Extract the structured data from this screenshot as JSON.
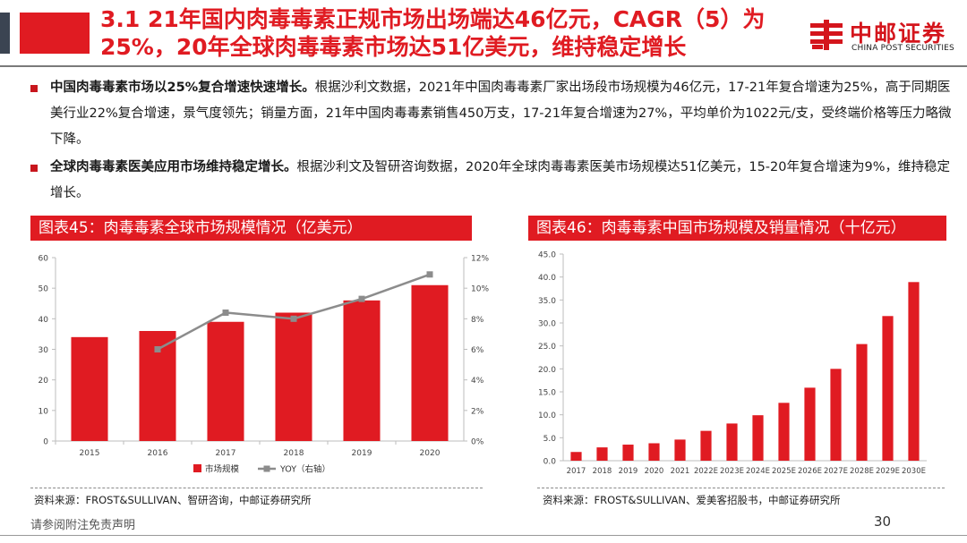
{
  "slide": {
    "title_line1": "3.1 21年国内肉毒毒素正规市场出场端达46亿元，CAGR（5）为",
    "title_line2": "25%，20年全球肉毒毒素市场达51亿美元，维持稳定增长",
    "logo_cn": "中邮证券",
    "logo_en": "CHINA POST SECURITIES",
    "footer_note": "请参阅附注免责声明",
    "page_number": "30"
  },
  "bullets": [
    {
      "lead": "中国肉毒毒素市场以25%复合增速快速增长。",
      "text": "根据沙利文数据，2021年中国肉毒毒素厂家出场段市场规模为46亿元，17-21年复合增速为25%，高于同期医美行业22%复合增速，景气度领先；销量方面，21年中国肉毒毒素销售450万支，17-21年复合增速为27%，平均单价为1022元/支，受终端价格等压力略微下降。"
    },
    {
      "lead": "全球肉毒毒素医美应用市场维持稳定增长。",
      "text": "根据沙利文及智研咨询数据，2020年全球肉毒毒素医美市场规模达51亿美元，15-20年复合增速为9%，维持稳定增长。"
    }
  ],
  "colors": {
    "accent_red": "#e01b22",
    "line_gray": "#8c8c8c",
    "dark_bar": "#3b4452"
  },
  "chart_data": [
    {
      "type": "bar",
      "title": "图表45：肉毒毒素全球市场规模情况（亿美元）",
      "categories": [
        "2015",
        "2016",
        "2017",
        "2018",
        "2019",
        "2020"
      ],
      "series": [
        {
          "name": "市场规模",
          "values": [
            34,
            36,
            39,
            42,
            46,
            51
          ],
          "axis": "left",
          "color": "#e01b22"
        },
        {
          "name": "YOY（右轴）",
          "type": "line",
          "values": [
            null,
            6.0,
            8.4,
            8.0,
            9.3,
            10.9
          ],
          "axis": "right",
          "color": "#8c8c8c"
        }
      ],
      "ylim": [
        0,
        60
      ],
      "y_ticks": [
        "0",
        "10",
        "20",
        "30",
        "40",
        "50",
        "60"
      ],
      "y2lim": [
        0,
        12
      ],
      "y2_ticks": [
        "0%",
        "2%",
        "4%",
        "6%",
        "8%",
        "10%",
        "12%"
      ],
      "legend_position": "bottom",
      "source": "资料来源：FROST&SULLIVAN、智研咨询，中邮证券研究所"
    },
    {
      "type": "bar",
      "title": "图表46：肉毒毒素中国市场规模及销量情况（十亿元）",
      "categories": [
        "2017",
        "2018",
        "2019",
        "2020",
        "2021",
        "2022E",
        "2023E",
        "2024E",
        "2025E",
        "2026E",
        "2027E",
        "2028E",
        "2029E",
        "2030E"
      ],
      "values": [
        1.9,
        2.9,
        3.5,
        3.8,
        4.6,
        6.5,
        8.1,
        9.9,
        12.6,
        15.9,
        20.0,
        25.4,
        31.5,
        38.9
      ],
      "ylim": [
        0,
        45
      ],
      "y_ticks": [
        "0.0",
        "5.0",
        "10.0",
        "15.0",
        "20.0",
        "25.0",
        "30.0",
        "35.0",
        "40.0",
        "45.0"
      ],
      "color": "#e01b22",
      "source": "资料来源：FROST&SULLIVAN、爱美客招股书，中邮证券研究所"
    }
  ]
}
